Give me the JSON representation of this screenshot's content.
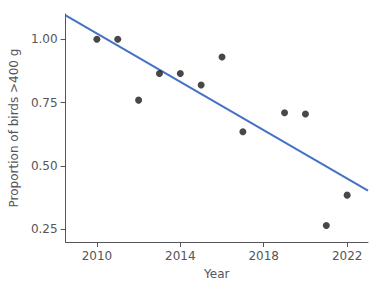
{
  "chart_data": {
    "type": "scatter",
    "xlabel": "Year",
    "ylabel": "Proportion of birds >400 g",
    "series": [
      {
        "type": "scatter",
        "color": "#1a1a1a",
        "x": [
          2010,
          2011,
          2012,
          2013,
          2014,
          2015,
          2016,
          2017,
          2019,
          2020,
          2021,
          2022
        ],
        "values": [
          1.0,
          1.0,
          0.76,
          0.865,
          0.865,
          0.82,
          0.93,
          0.635,
          0.71,
          0.705,
          0.265,
          0.385
        ]
      },
      {
        "type": "line",
        "color": "#4472C4",
        "x": [
          2008.5,
          2023.0
        ],
        "values": [
          1.0948,
          0.4031
        ]
      }
    ],
    "xlim": [
      2008.5,
      2023.0
    ],
    "ylim": [
      0.2,
      1.1
    ],
    "xticks": [
      2010,
      2014,
      2018,
      2022
    ],
    "yticks": [
      0.25,
      {
        "value": 0.5,
        "label": "0.50"
      },
      0.75,
      {
        "value": 1.0,
        "label": "1.00"
      }
    ],
    "grid": false
  }
}
